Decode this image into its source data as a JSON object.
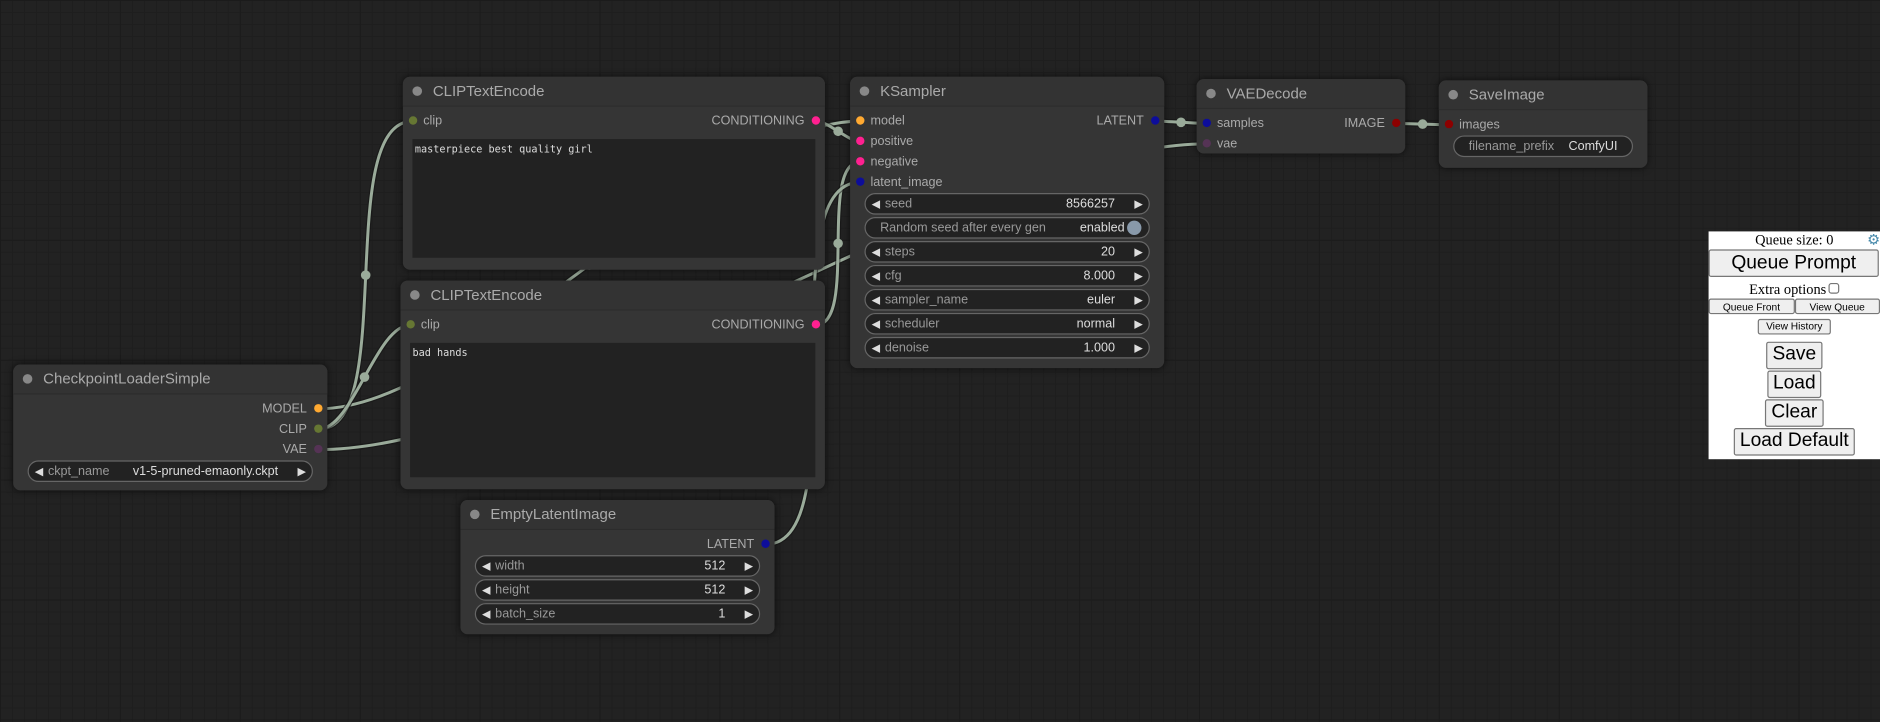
{
  "colors": {
    "link": "#9aab9a",
    "MODEL": "#ffa931",
    "CLIP": "#667733",
    "VAE": "#553355",
    "CONDITIONING": "#ff2090",
    "LATENT": "#0d0d9a",
    "IMAGE": "#8c0000"
  },
  "nodes": {
    "clip_pos": {
      "title": "CLIPTextEncode",
      "inputs": [
        {
          "label": "clip",
          "type": "CLIP"
        }
      ],
      "outputs": [
        {
          "label": "CONDITIONING",
          "type": "CONDITIONING"
        }
      ],
      "text": "masterpiece best quality girl"
    },
    "clip_neg": {
      "title": "CLIPTextEncode",
      "inputs": [
        {
          "label": "clip",
          "type": "CLIP"
        }
      ],
      "outputs": [
        {
          "label": "CONDITIONING",
          "type": "CONDITIONING"
        }
      ],
      "text": "bad hands"
    },
    "ckpt": {
      "title": "CheckpointLoaderSimple",
      "inputs": [],
      "outputs": [
        {
          "label": "MODEL",
          "type": "MODEL"
        },
        {
          "label": "CLIP",
          "type": "CLIP"
        },
        {
          "label": "VAE",
          "type": "VAE"
        }
      ],
      "widgets": [
        {
          "name": "ckpt_name",
          "value": "v1-5-pruned-emaonly.ckpt",
          "kind": "combo"
        }
      ]
    },
    "latent": {
      "title": "EmptyLatentImage",
      "inputs": [],
      "outputs": [
        {
          "label": "LATENT",
          "type": "LATENT"
        }
      ],
      "widgets": [
        {
          "name": "width",
          "value": "512",
          "kind": "number"
        },
        {
          "name": "height",
          "value": "512",
          "kind": "number"
        },
        {
          "name": "batch_size",
          "value": "1",
          "kind": "number"
        }
      ]
    },
    "ksampler": {
      "title": "KSampler",
      "inputs": [
        {
          "label": "model",
          "type": "MODEL"
        },
        {
          "label": "positive",
          "type": "CONDITIONING"
        },
        {
          "label": "negative",
          "type": "CONDITIONING"
        },
        {
          "label": "latent_image",
          "type": "LATENT"
        }
      ],
      "outputs": [
        {
          "label": "LATENT",
          "type": "LATENT"
        }
      ],
      "widgets": [
        {
          "name": "seed",
          "value": "8566257",
          "kind": "number"
        },
        {
          "name": "Random seed after every gen",
          "value": "enabled",
          "kind": "toggle"
        },
        {
          "name": "steps",
          "value": "20",
          "kind": "number"
        },
        {
          "name": "cfg",
          "value": "8.000",
          "kind": "number"
        },
        {
          "name": "sampler_name",
          "value": "euler",
          "kind": "combo"
        },
        {
          "name": "scheduler",
          "value": "normal",
          "kind": "combo"
        },
        {
          "name": "denoise",
          "value": "1.000",
          "kind": "number"
        }
      ]
    },
    "vaedecode": {
      "title": "VAEDecode",
      "inputs": [
        {
          "label": "samples",
          "type": "LATENT"
        },
        {
          "label": "vae",
          "type": "VAE"
        }
      ],
      "outputs": [
        {
          "label": "IMAGE",
          "type": "IMAGE"
        }
      ]
    },
    "save": {
      "title": "SaveImage",
      "inputs": [
        {
          "label": "images",
          "type": "IMAGE"
        }
      ],
      "outputs": [],
      "widgets": [
        {
          "name": "filename_prefix",
          "value": "ComfyUI",
          "kind": "text"
        }
      ]
    }
  },
  "links": [
    {
      "from": "ckpt.0",
      "to": "ksampler.0",
      "type": "MODEL"
    },
    {
      "from": "ckpt.1",
      "to": "clip_pos.0",
      "type": "CLIP"
    },
    {
      "from": "ckpt.1",
      "to": "clip_neg.0",
      "type": "CLIP"
    },
    {
      "from": "ckpt.2",
      "to": "vaedecode.1",
      "type": "VAE"
    },
    {
      "from": "clip_pos.0",
      "to": "ksampler.1",
      "type": "CONDITIONING"
    },
    {
      "from": "clip_neg.0",
      "to": "ksampler.2",
      "type": "CONDITIONING"
    },
    {
      "from": "latent.0",
      "to": "ksampler.3",
      "type": "LATENT"
    },
    {
      "from": "ksampler.0",
      "to": "vaedecode.0",
      "type": "LATENT"
    },
    {
      "from": "vaedecode.0",
      "to": "save.0",
      "type": "IMAGE"
    }
  ],
  "queue": {
    "size_label": "Queue size: 0",
    "settings_icon": "gear-icon",
    "queue_prompt": "Queue Prompt",
    "extra_options": "Extra options",
    "extra_checked": false,
    "queue_front": "Queue Front",
    "view_queue": "View Queue",
    "view_history": "View History",
    "save": "Save",
    "load": "Load",
    "clear": "Clear",
    "load_default": "Load Default"
  }
}
